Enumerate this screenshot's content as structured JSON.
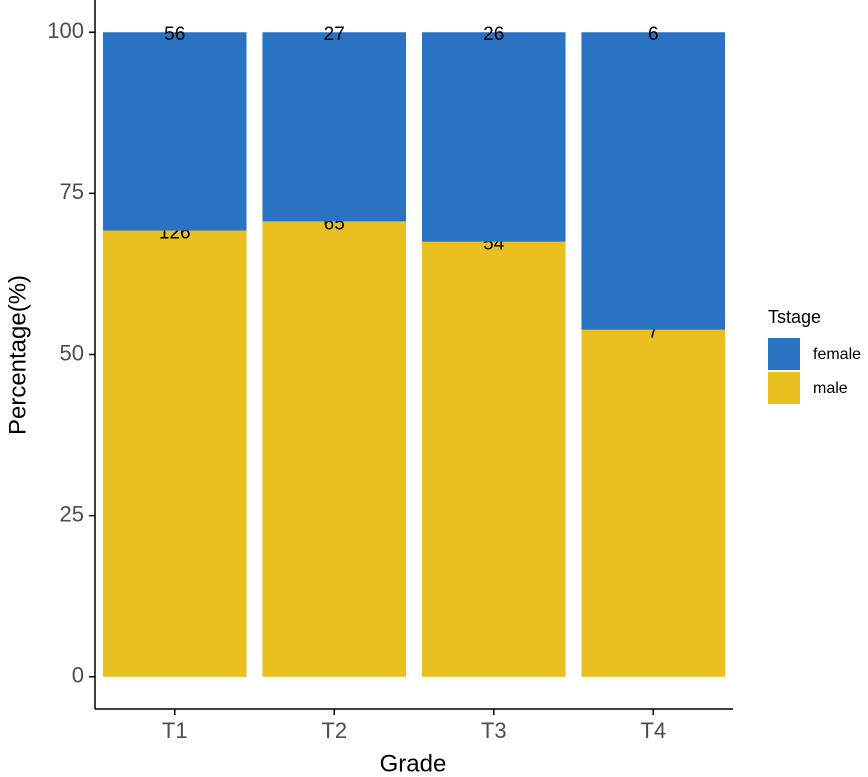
{
  "chart_data": {
    "type": "bar",
    "stack": "percent",
    "x_label": "Grade",
    "y_label": "Percentage(%)",
    "categories": [
      "T1",
      "T2",
      "T3",
      "T4"
    ],
    "series": [
      {
        "name": "female",
        "color": "#2a72c2",
        "values": [
          56,
          27,
          26,
          6
        ]
      },
      {
        "name": "male",
        "color": "#e9c01f",
        "values": [
          126,
          65,
          54,
          7
        ]
      }
    ],
    "ylim": [
      -5,
      105
    ],
    "yticks": [
      0,
      25,
      50,
      75,
      100
    ],
    "legend_title": "Tstage",
    "legend": "right",
    "grid": false
  }
}
